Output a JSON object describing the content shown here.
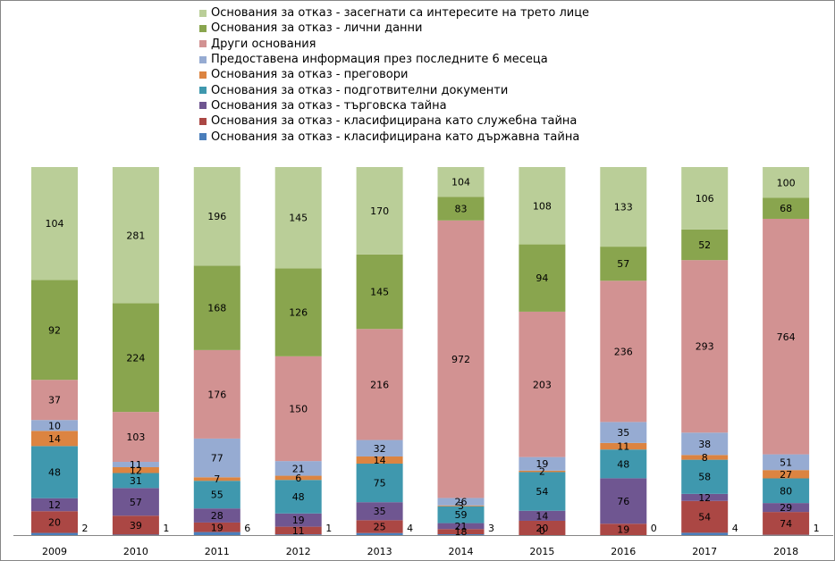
{
  "chart_data": {
    "type": "bar",
    "stacking": "percent",
    "title": "",
    "xlabel": "",
    "ylabel": "",
    "legend_position": "top",
    "grid": false,
    "categories": [
      "2009",
      "2010",
      "2011",
      "2012",
      "2013",
      "2014",
      "2015",
      "2016",
      "2017",
      "2018"
    ],
    "series": [
      {
        "name": "Основания за отказ - класифицирана като държавна тайна",
        "color": "#4a7ebb",
        "values": [
          2,
          1,
          6,
          1,
          4,
          3,
          0,
          0,
          4,
          1
        ]
      },
      {
        "name": "Основания за отказ - класифицирана като служебна тайна",
        "color": "#ab4744",
        "values": [
          20,
          39,
          19,
          11,
          25,
          18,
          20,
          19,
          54,
          74
        ]
      },
      {
        "name": "Основания за отказ - търговска тайна",
        "color": "#6f5691",
        "values": [
          12,
          57,
          28,
          19,
          35,
          21,
          14,
          76,
          12,
          29
        ]
      },
      {
        "name": "Основания за отказ - подготвителни документи",
        "color": "#3f98ae",
        "values": [
          48,
          31,
          55,
          48,
          75,
          59,
          54,
          48,
          58,
          80
        ]
      },
      {
        "name": "Основания за отказ - преговори",
        "color": "#dc8441",
        "values": [
          14,
          12,
          7,
          6,
          14,
          3,
          2,
          11,
          8,
          27
        ]
      },
      {
        "name": "Предоставена информация през последните 6 месеца",
        "color": "#96abd2",
        "values": [
          10,
          11,
          77,
          21,
          32,
          26,
          19,
          35,
          38,
          51
        ]
      },
      {
        "name": "Други основания",
        "color": "#d29292",
        "values": [
          37,
          103,
          176,
          150,
          216,
          972,
          203,
          236,
          293,
          764
        ]
      },
      {
        "name": "Основания за отказ - лични данни",
        "color": "#89a54e",
        "values": [
          92,
          224,
          168,
          126,
          145,
          83,
          94,
          57,
          52,
          68
        ]
      },
      {
        "name": "Основания за отказ - засегнати са интересите на трето лице",
        "color": "#bace98",
        "values": [
          104,
          281,
          196,
          145,
          170,
          104,
          108,
          133,
          106,
          100
        ]
      }
    ]
  }
}
